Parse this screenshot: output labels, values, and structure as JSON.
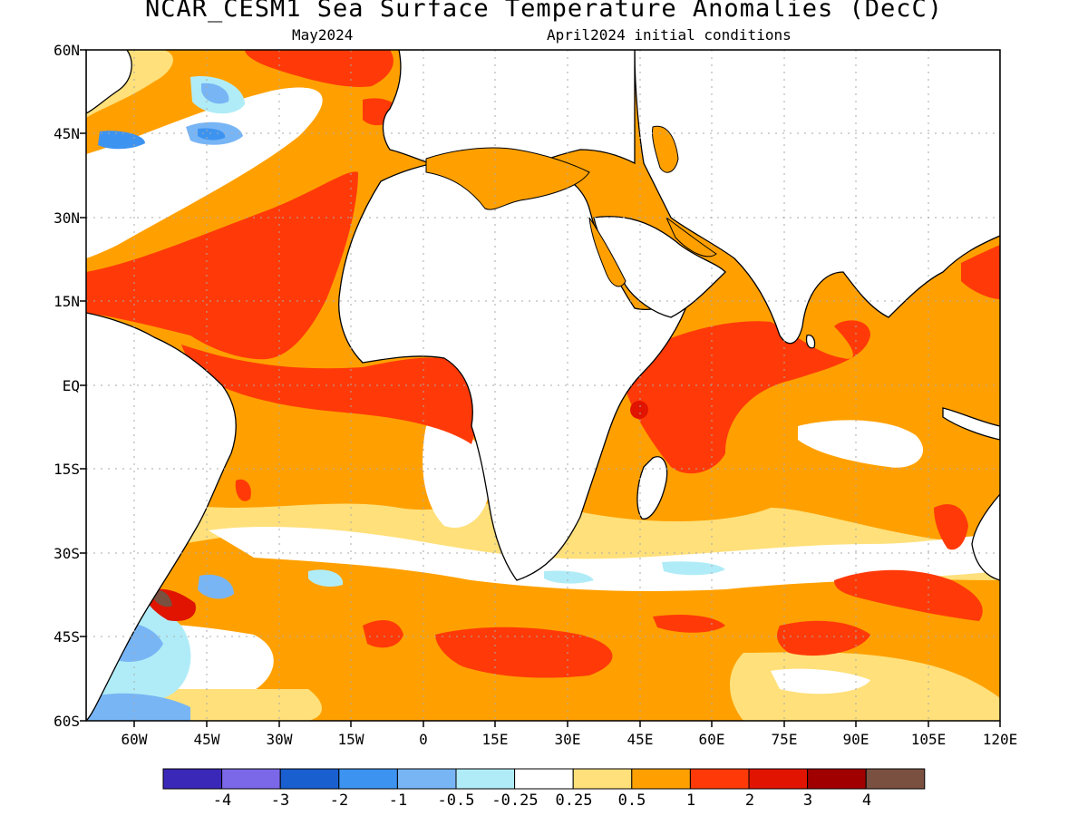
{
  "header": {
    "title": "NCAR_CESM1 Sea Surface Temperature Anomalies (DecC)",
    "forecast_month": "May2024",
    "initial_conditions": "April2024 initial conditions"
  },
  "map": {
    "lon_range": [
      -70,
      120
    ],
    "lat_range": [
      -60,
      60
    ],
    "lat_labels": [
      "60N",
      "45N",
      "30N",
      "15N",
      "EQ",
      "15S",
      "30S",
      "45S",
      "60S"
    ],
    "lon_labels": [
      "60W",
      "45W",
      "30W",
      "15W",
      "0",
      "15E",
      "30E",
      "45E",
      "60E",
      "75E",
      "90E",
      "105E",
      "120E"
    ],
    "gridlines": "dotted",
    "land_color": "#ffffff",
    "coastline_color": "#000000"
  },
  "colorbar": {
    "colors": [
      "#3a28b8",
      "#7a68e8",
      "#1a5fd0",
      "#3d93f0",
      "#78b5f5",
      "#b0ecf7",
      "#ffffff",
      "#ffe07a",
      "#ffa000",
      "#ff3a08",
      "#e01400",
      "#a00000",
      "#7a5040"
    ],
    "labels": [
      "-4",
      "-3",
      "-2",
      "-1",
      "-0.5",
      "-0.25",
      "0.25",
      "0.5",
      "1",
      "2",
      "3",
      "4"
    ]
  }
}
